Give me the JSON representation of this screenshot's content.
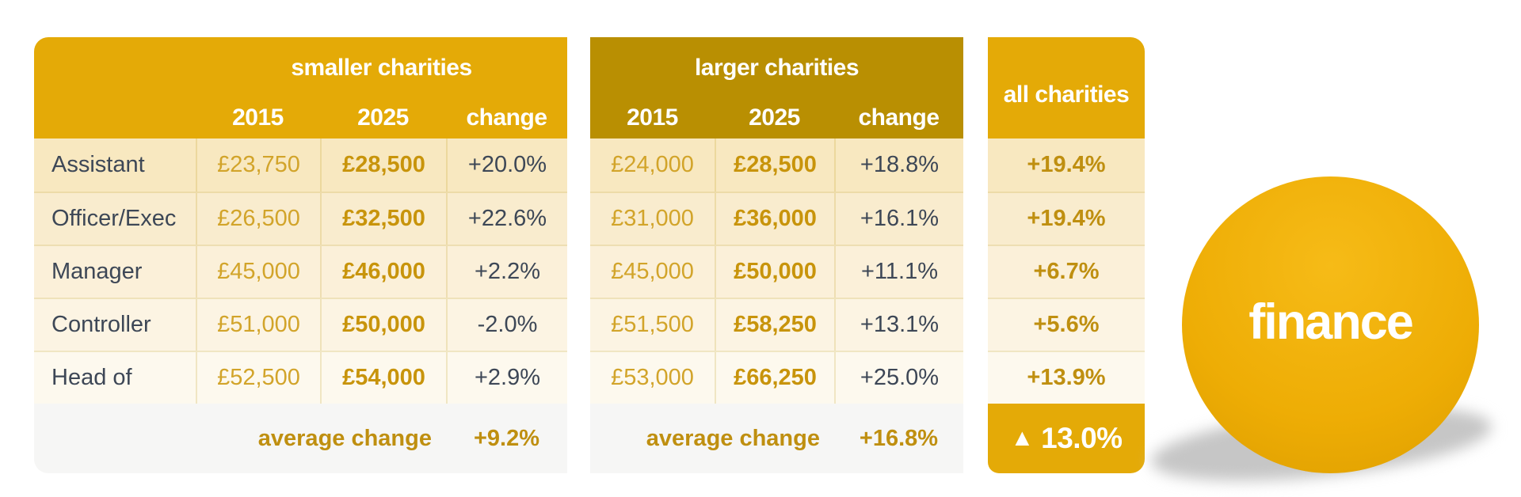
{
  "colors": {
    "gold": "#e4aa07",
    "gold_dark": "#b98f02",
    "cream1": "#f8e8c0",
    "cream2": "#f9ecce",
    "cream3": "#fbf0d9",
    "cream4": "#fcf4e3",
    "cream5": "#fdf9ee",
    "footer_bg": "#f6f6f5",
    "sep": "rgba(185,143,2,0.18)",
    "text_dark": "#3d4756",
    "gold_value_light": "#d2a42a",
    "gold_value_bold": "#c8940b",
    "gold_accent": "#bf8f10",
    "ball_top": "#f6bb17",
    "ball_mid": "#eead05",
    "ball_bottom": "#dd9e00",
    "shadow": "#c6c6c6"
  },
  "smaller": {
    "title": "smaller charities",
    "col_2015": "2015",
    "col_2025": "2025",
    "col_change": "change",
    "rows": [
      {
        "label": "Assistant",
        "y2015": "£23,750",
        "y2025": "£28,500",
        "change": "+20.0%"
      },
      {
        "label": "Officer/Exec",
        "y2015": "£26,500",
        "y2025": "£32,500",
        "change": "+22.6%"
      },
      {
        "label": "Manager",
        "y2015": "£45,000",
        "y2025": "£46,000",
        "change": "+2.2%"
      },
      {
        "label": "Controller",
        "y2015": "£51,000",
        "y2025": "£50,000",
        "change": "-2.0%"
      },
      {
        "label": "Head of",
        "y2015": "£52,500",
        "y2025": "£54,000",
        "change": "+2.9%"
      }
    ],
    "footer_label": "average change",
    "footer_value": "+9.2%"
  },
  "larger": {
    "title": "larger charities",
    "col_2015": "2015",
    "col_2025": "2025",
    "col_change": "change",
    "rows": [
      {
        "y2015": "£24,000",
        "y2025": "£28,500",
        "change": "+18.8%"
      },
      {
        "y2015": "£31,000",
        "y2025": "£36,000",
        "change": "+16.1%"
      },
      {
        "y2015": "£45,000",
        "y2025": "£50,000",
        "change": "+11.1%"
      },
      {
        "y2015": "£51,500",
        "y2025": "£58,250",
        "change": "+13.1%"
      },
      {
        "y2015": "£53,000",
        "y2025": "£66,250",
        "change": "+25.0%"
      }
    ],
    "footer_label": "average change",
    "footer_value": "+16.8%"
  },
  "all": {
    "title": "all charities",
    "values": [
      "+19.4%",
      "+19.4%",
      "+6.7%",
      "+5.6%",
      "+13.9%"
    ],
    "footer_icon": "▲",
    "footer_value": "13.0%"
  },
  "badge": {
    "label": "finance"
  },
  "chart_data": {
    "type": "table",
    "row_labels": [
      "Assistant",
      "Officer/Exec",
      "Manager",
      "Controller",
      "Head of"
    ],
    "currency": "GBP",
    "groups": [
      {
        "name": "smaller charities",
        "columns": [
          "2015",
          "2025",
          "change"
        ],
        "salaries_2015": [
          23750,
          26500,
          45000,
          51000,
          52500
        ],
        "salaries_2025": [
          28500,
          32500,
          46000,
          50000,
          54000
        ],
        "change_pct": [
          20.0,
          22.6,
          2.2,
          -2.0,
          2.9
        ],
        "average_change_pct": 9.2
      },
      {
        "name": "larger charities",
        "columns": [
          "2015",
          "2025",
          "change"
        ],
        "salaries_2015": [
          24000,
          31000,
          45000,
          51500,
          53000
        ],
        "salaries_2025": [
          28500,
          36000,
          50000,
          58250,
          66250
        ],
        "change_pct": [
          18.8,
          16.1,
          11.1,
          13.1,
          25.0
        ],
        "average_change_pct": 16.8
      },
      {
        "name": "all charities",
        "change_pct": [
          19.4,
          19.4,
          6.7,
          5.6,
          13.9
        ],
        "average_change_pct": 13.0
      }
    ],
    "badge": "finance"
  }
}
